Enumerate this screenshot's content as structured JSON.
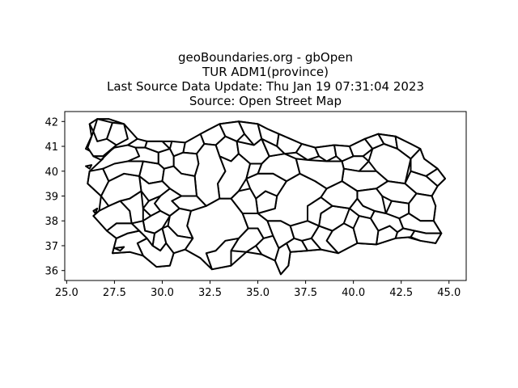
{
  "title": {
    "line1": "geoBoundaries.org - gbOpen",
    "line2": "TUR ADM1(province)",
    "line3": "Last Source Data Update: Thu Jan 19 07:31:04 2023",
    "line4": "Source: Open Street Map"
  },
  "map": {
    "type": "choropleth-outline",
    "fill_color": "#ffffff",
    "stroke_color": "#000000",
    "x_range": [
      24.9,
      45.9
    ],
    "y_range": [
      35.6,
      42.4
    ],
    "x_ticks": [
      "25.0",
      "27.5",
      "30.0",
      "32.5",
      "35.0",
      "37.5",
      "40.0",
      "42.5",
      "45.0"
    ],
    "y_ticks": [
      "36",
      "37",
      "38",
      "39",
      "40",
      "41",
      "42"
    ],
    "grid": false
  }
}
